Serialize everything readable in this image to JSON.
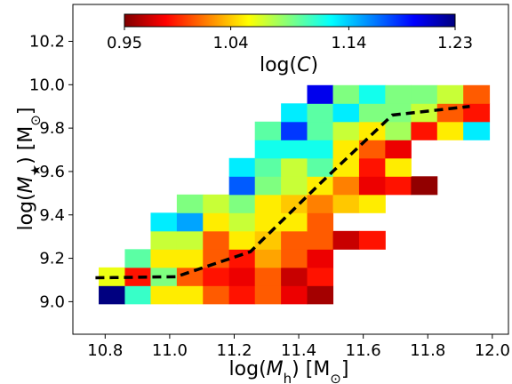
{
  "chart_data": {
    "type": "heatmap",
    "xlabel": [
      "log(",
      "M",
      "h",
      ") [M",
      "⊙",
      "]"
    ],
    "ylabel": [
      "log(",
      "M",
      "★",
      ") [M",
      "⊙",
      "]"
    ],
    "colorbar_label": [
      "log(",
      "C",
      ")"
    ],
    "colormap": "jet_r",
    "clim": [
      0.95,
      1.23
    ],
    "cticks": [
      0.95,
      1.04,
      1.14,
      1.23
    ],
    "xlim": [
      10.7,
      12.05
    ],
    "ylim": [
      8.85,
      10.37
    ],
    "xticks": [
      10.8,
      {
        "value": 11,
        "label": "11.0"
      },
      11.2,
      11.4,
      11.6,
      11.8,
      {
        "value": 12,
        "label": "12.0"
      }
    ],
    "yticks": [
      {
        "value": 9,
        "label": "9.0"
      },
      9.2,
      9.4,
      9.6,
      9.8,
      {
        "value": 10,
        "label": "10.0"
      },
      10.2
    ],
    "x_edges": [
      10.78,
      10.861,
      10.941,
      11.022,
      11.103,
      11.184,
      11.264,
      11.345,
      11.426,
      11.506,
      11.587,
      11.668,
      11.748,
      11.829,
      11.91,
      11.991
    ],
    "y_edges": [
      8.99,
      9.074,
      9.158,
      9.242,
      9.326,
      9.41,
      9.494,
      9.578,
      9.662,
      9.746,
      9.83,
      9.914,
      9.998
    ],
    "z": [
      [
        1.23,
        1.11,
        1.05,
        1.05,
        1.01,
        0.99,
        1.01,
        0.98,
        0.96,
        null,
        null,
        null,
        null,
        null,
        null
      ],
      [
        1.06,
        0.99,
        1.09,
        1.01,
        0.99,
        0.98,
        1.01,
        0.97,
        0.99,
        null,
        null,
        null,
        null,
        null,
        null
      ],
      [
        null,
        1.1,
        1.05,
        1.05,
        1.01,
        0.99,
        1.03,
        1.01,
        0.98,
        null,
        null,
        null,
        null,
        null,
        null
      ],
      [
        null,
        null,
        1.07,
        1.07,
        1.01,
        1.05,
        1.04,
        1.01,
        1.01,
        0.97,
        0.99,
        null,
        null,
        null,
        null
      ],
      [
        null,
        null,
        1.13,
        1.15,
        1.05,
        1.07,
        1.05,
        1.05,
        1.01,
        null,
        null,
        null,
        null,
        null,
        null
      ],
      [
        null,
        null,
        null,
        1.09,
        1.07,
        1.09,
        1.05,
        1.04,
        1.02,
        1.04,
        1.05,
        null,
        null,
        null,
        null
      ],
      [
        null,
        null,
        null,
        null,
        null,
        1.17,
        1.09,
        1.07,
        1.05,
        1.02,
        0.98,
        0.99,
        0.955,
        null,
        null
      ],
      [
        null,
        null,
        null,
        null,
        null,
        1.13,
        1.1,
        1.07,
        1.1,
        1.05,
        0.99,
        1.05,
        null,
        null,
        null
      ],
      [
        null,
        null,
        null,
        null,
        null,
        null,
        1.12,
        1.12,
        1.12,
        1.05,
        1.01,
        0.98,
        null,
        null,
        null
      ],
      [
        null,
        null,
        null,
        null,
        null,
        null,
        1.1,
        1.18,
        1.1,
        1.07,
        1.05,
        1.08,
        0.99,
        1.05,
        1.13
      ],
      [
        null,
        null,
        null,
        null,
        null,
        null,
        null,
        1.13,
        1.1,
        1.13,
        1.09,
        1.09,
        1.07,
        1.01,
        0.99
      ],
      [
        null,
        null,
        null,
        null,
        null,
        null,
        null,
        null,
        1.2,
        1.09,
        1.12,
        1.09,
        1.09,
        1.07,
        1.01
      ]
    ],
    "line": {
      "x": [
        10.77,
        11.02,
        11.25,
        11.47,
        11.69,
        11.93
      ],
      "y": [
        9.11,
        9.115,
        9.23,
        9.55,
        9.86,
        9.9
      ],
      "color": "#000000"
    }
  }
}
